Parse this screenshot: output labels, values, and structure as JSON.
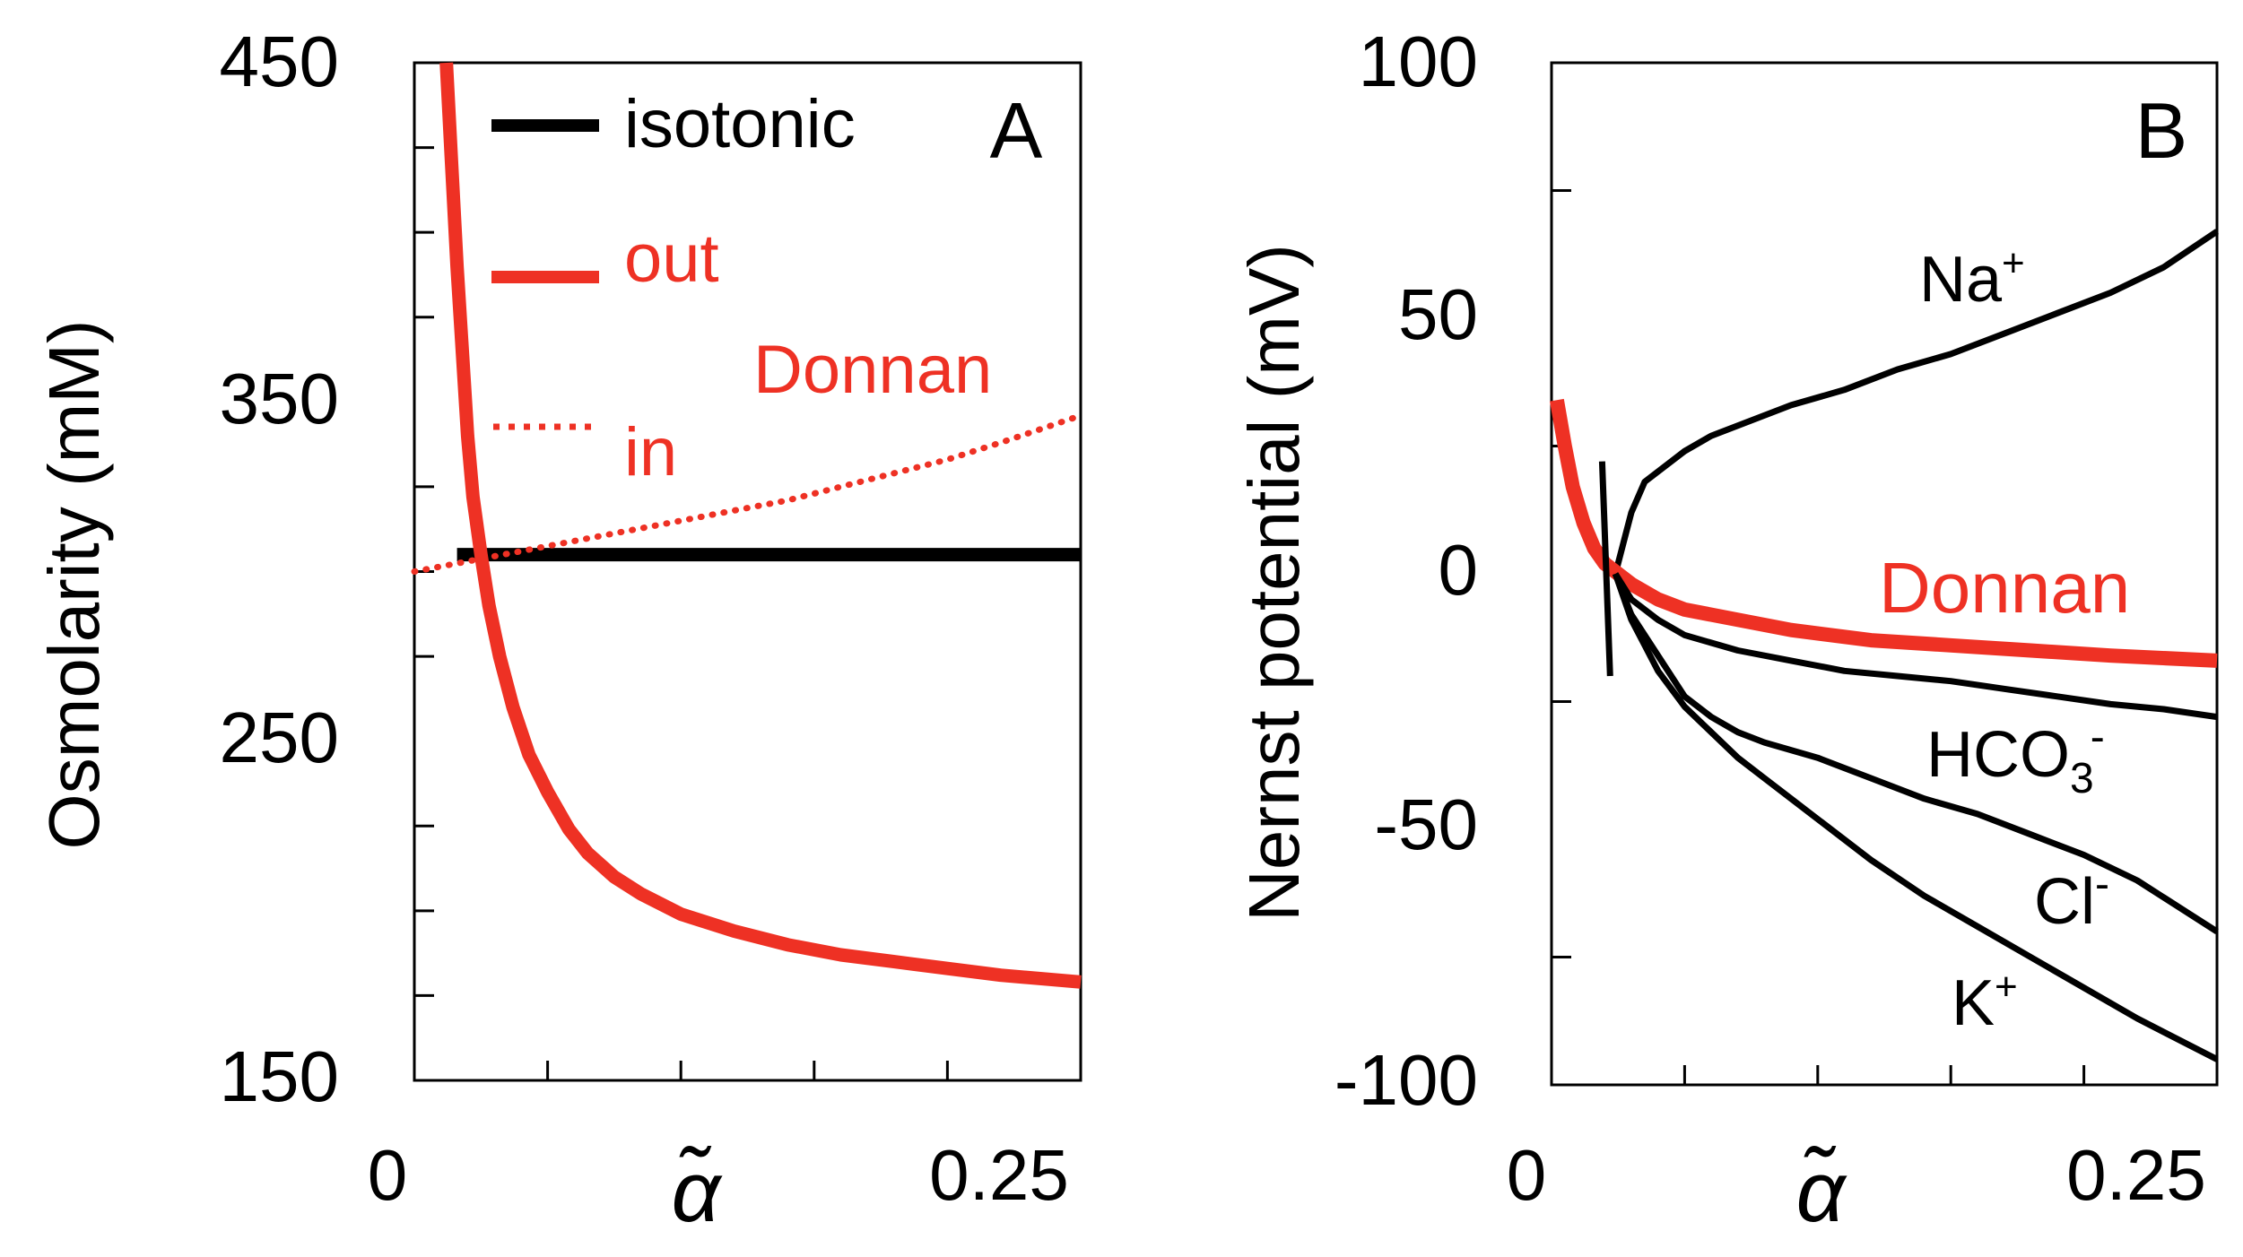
{
  "colors": {
    "black": "#000000",
    "red": "#ee3124"
  },
  "chart_data": [
    {
      "panel": "A",
      "type": "line",
      "panel_label": "A",
      "ylabel": "Osmolarity  (mM)",
      "xlabel": "α̃",
      "xlim": [
        0,
        0.25
      ],
      "ylim": [
        150,
        450
      ],
      "x_tick_labels": [
        "0",
        "0.25"
      ],
      "x_minor_ticks": [
        0.05,
        0.1,
        0.15,
        0.2
      ],
      "y_tick_labels": [
        "150",
        "250",
        "350",
        "450"
      ],
      "y_minor_ticks": [
        175,
        200,
        225,
        275,
        300,
        325,
        375,
        400,
        425
      ],
      "legend": {
        "isotonic": "isotonic",
        "out": "out",
        "donnan": "Donnan",
        "in": "in"
      },
      "series": [
        {
          "name": "isotonic",
          "color": "#000000",
          "style": "solid",
          "x": [
            0.016,
            0.25
          ],
          "y": [
            305,
            305
          ]
        },
        {
          "name": "Donnan out",
          "color": "#ee3124",
          "style": "solid",
          "x": [
            0.012,
            0.014,
            0.016,
            0.018,
            0.02,
            0.022,
            0.025,
            0.028,
            0.032,
            0.037,
            0.043,
            0.05,
            0.058,
            0.065,
            0.075,
            0.085,
            0.1,
            0.12,
            0.14,
            0.16,
            0.18,
            0.2,
            0.22,
            0.25
          ],
          "y": [
            450,
            420,
            390,
            365,
            340,
            322,
            305,
            290,
            275,
            260,
            246,
            235,
            224,
            217,
            210,
            205,
            199,
            194,
            190,
            187,
            185,
            183,
            181,
            179
          ]
        },
        {
          "name": "Donnan in",
          "color": "#ee3124",
          "style": "dotted",
          "x": [
            0,
            0.02,
            0.04,
            0.06,
            0.08,
            0.1,
            0.12,
            0.14,
            0.16,
            0.18,
            0.2,
            0.22,
            0.25
          ],
          "y": [
            300,
            303,
            306,
            309,
            312,
            315,
            318,
            321,
            325,
            329,
            333,
            338,
            346
          ]
        }
      ]
    },
    {
      "panel": "B",
      "type": "line",
      "panel_label": "B",
      "ylabel": "Nernst potential (mV)",
      "xlabel": "α̃",
      "xlim": [
        0,
        0.25
      ],
      "ylim": [
        -100,
        100
      ],
      "x_tick_labels": [
        "0",
        "0.25"
      ],
      "x_minor_ticks": [
        0.05,
        0.1,
        0.15,
        0.2
      ],
      "y_tick_labels": [
        "-100",
        "-50",
        "0",
        "50",
        "100"
      ],
      "y_minor_ticks": [
        -75,
        -25,
        25,
        75
      ],
      "series": [
        {
          "name": "Na+",
          "label": "Na",
          "label_sup": "+",
          "color": "#000000",
          "x": [
            0.024,
            0.027,
            0.03,
            0.035,
            0.04,
            0.05,
            0.06,
            0.075,
            0.09,
            0.11,
            0.13,
            0.15,
            0.17,
            0.19,
            0.21,
            0.23,
            0.25
          ],
          "y": [
            0,
            6,
            12,
            18,
            20,
            24,
            27,
            30,
            33,
            36,
            40,
            43,
            47,
            51,
            55,
            60,
            67
          ]
        },
        {
          "name": "Donnan",
          "label": "Donnan",
          "color": "#ee3124",
          "x": [
            0.002,
            0.005,
            0.008,
            0.012,
            0.016,
            0.02,
            0.025,
            0.03,
            0.04,
            0.05,
            0.07,
            0.09,
            0.12,
            0.15,
            0.18,
            0.21,
            0.25
          ],
          "y": [
            34,
            25,
            17,
            10,
            5,
            2,
            0,
            -2,
            -5,
            -7,
            -9,
            -11,
            -13,
            -14,
            -15,
            -16,
            -17
          ]
        },
        {
          "name": "HCO3-",
          "label": "HCO",
          "label_sub": "3",
          "label_sup": "-",
          "color": "#000000",
          "x": [
            0.024,
            0.03,
            0.04,
            0.05,
            0.07,
            0.09,
            0.11,
            0.13,
            0.15,
            0.17,
            0.19,
            0.21,
            0.23,
            0.25
          ],
          "y": [
            0,
            -5,
            -9,
            -12,
            -15,
            -17,
            -19,
            -20,
            -21,
            -22.5,
            -24,
            -25.5,
            -26.5,
            -28
          ]
        },
        {
          "name": "Cl-",
          "label": "Cl",
          "label_sup": "-",
          "color": "#000000",
          "x": [
            0.024,
            0.03,
            0.035,
            0.04,
            0.05,
            0.06,
            0.07,
            0.08,
            0.1,
            0.12,
            0.14,
            0.16,
            0.18,
            0.2,
            0.22,
            0.25
          ],
          "y": [
            0,
            -8,
            -12,
            -16,
            -24,
            -28,
            -31,
            -33,
            -36,
            -40,
            -44,
            -47,
            -51,
            -55,
            -60,
            -70
          ]
        },
        {
          "name": "K+",
          "label": "K",
          "label_sup": "+",
          "color": "#000000",
          "x": [
            0.024,
            0.03,
            0.035,
            0.04,
            0.05,
            0.06,
            0.07,
            0.08,
            0.1,
            0.12,
            0.14,
            0.16,
            0.18,
            0.2,
            0.22,
            0.25
          ],
          "y": [
            0,
            -9,
            -14,
            -19,
            -26,
            -31,
            -36,
            -40,
            -48,
            -56,
            -63,
            -69,
            -75,
            -81,
            -87,
            -95
          ]
        },
        {
          "name": "vertical crossing line",
          "color": "#000000",
          "x": [
            0.019,
            0.022
          ],
          "y": [
            22,
            -20
          ]
        }
      ]
    }
  ]
}
